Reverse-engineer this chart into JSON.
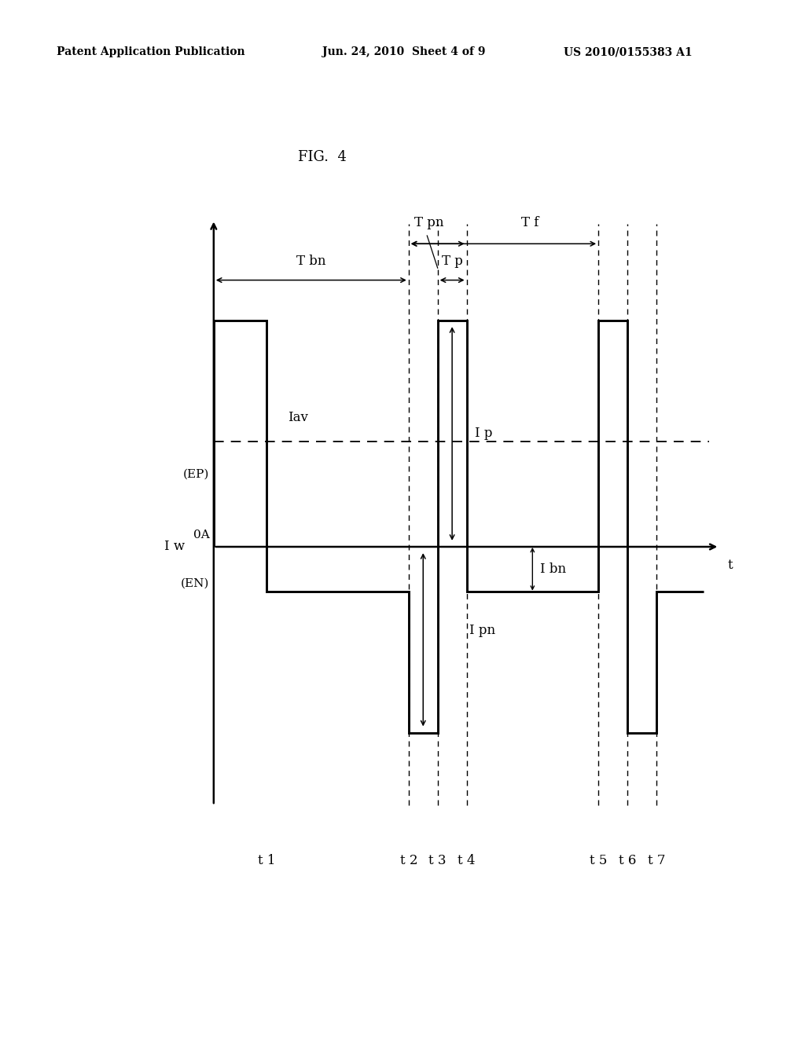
{
  "fig_title": "FIG.  4",
  "header_left": "Patent Application Publication",
  "header_center": "Jun. 24, 2010  Sheet 4 of 9",
  "header_right": "US 2010/0155383 A1",
  "background_color": "#ffffff",
  "line_color": "#000000",
  "t1": 1.5,
  "t2": 4.2,
  "t3": 4.75,
  "t4": 5.3,
  "t5": 7.8,
  "t6": 8.35,
  "t7": 8.9,
  "t_start": 0.5,
  "t_end": 9.8,
  "Ip": 2.8,
  "Iav": 1.3,
  "Ibn": -0.55,
  "Ipn": -2.3,
  "Iep_level": 0.9,
  "Ien_level": -0.45,
  "xlim": [
    -0.5,
    10.5
  ],
  "ylim": [
    -3.5,
    4.2
  ]
}
